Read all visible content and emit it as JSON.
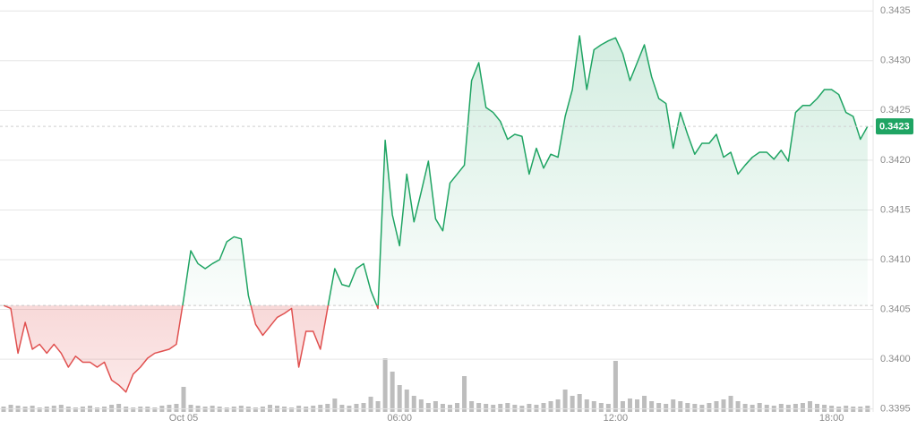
{
  "chart_data": {
    "type": "line",
    "categories": [
      null,
      null,
      null,
      null,
      null,
      null,
      null,
      null,
      null,
      null,
      null,
      null,
      null,
      null,
      null,
      null,
      null,
      null,
      null,
      null,
      null,
      null,
      null,
      null,
      null,
      "Oct 05",
      null,
      null,
      null,
      null,
      null,
      null,
      null,
      null,
      null,
      null,
      null,
      null,
      null,
      null,
      null,
      null,
      null,
      null,
      null,
      null,
      null,
      null,
      null,
      null,
      null,
      null,
      null,
      null,
      null,
      "06:00",
      null,
      null,
      null,
      null,
      null,
      null,
      null,
      null,
      null,
      null,
      null,
      null,
      null,
      null,
      null,
      null,
      null,
      null,
      null,
      null,
      null,
      null,
      null,
      null,
      null,
      null,
      null,
      null,
      null,
      "12:00",
      null,
      null,
      null,
      null,
      null,
      null,
      null,
      null,
      null,
      null,
      null,
      null,
      null,
      null,
      null,
      null,
      null,
      null,
      null,
      null,
      null,
      null,
      null,
      null,
      null,
      null,
      null,
      null,
      null,
      "18:00",
      null,
      null,
      null,
      null,
      null
    ],
    "values": [
      0.34054,
      0.34051,
      0.34006,
      0.34037,
      0.3401,
      0.34015,
      0.34006,
      0.34015,
      0.34006,
      0.33992,
      0.34003,
      0.33997,
      0.33997,
      0.33992,
      0.33997,
      0.33979,
      0.33974,
      0.33967,
      0.33985,
      0.33992,
      0.34001,
      0.34006,
      0.34008,
      0.3401,
      0.34015,
      0.3406,
      0.34109,
      0.34096,
      0.34091,
      0.34096,
      0.341,
      0.34118,
      0.34123,
      0.34121,
      0.34064,
      0.34035,
      0.34024,
      0.34033,
      0.34042,
      0.34046,
      0.34051,
      0.33992,
      0.34028,
      0.34028,
      0.3401,
      0.34051,
      0.34091,
      0.34075,
      0.34073,
      0.34091,
      0.34096,
      0.34069,
      0.34051,
      0.3422,
      0.34145,
      0.34114,
      0.34186,
      0.34138,
      0.34168,
      0.34199,
      0.34141,
      0.34129,
      0.34177,
      0.34186,
      0.34195,
      0.3428,
      0.34298,
      0.34253,
      0.34248,
      0.34239,
      0.34221,
      0.34226,
      0.34224,
      0.34186,
      0.34212,
      0.34192,
      0.34206,
      0.34203,
      0.34244,
      0.34271,
      0.34325,
      0.34271,
      0.34311,
      0.34316,
      0.3432,
      0.34323,
      0.34307,
      0.3428,
      0.34298,
      0.34316,
      0.34284,
      0.34262,
      0.34257,
      0.34212,
      0.34248,
      0.34226,
      0.34206,
      0.34217,
      0.34217,
      0.34226,
      0.34203,
      0.34208,
      0.34186,
      0.34195,
      0.34203,
      0.34208,
      0.34208,
      0.34201,
      0.3421,
      0.34199,
      0.34248,
      0.34255,
      0.34255,
      0.34262,
      0.34271,
      0.34271,
      0.34266,
      0.34248,
      0.34244,
      0.34221,
      0.34234
    ],
    "baseline": 0.34054,
    "up_color": "#1fa463",
    "down_color": "#e0504f",
    "last_value_label": "0.3423",
    "volume": {
      "axis": "y2",
      "color": "#bdbdbd",
      "values": [
        6,
        8,
        7,
        6,
        7,
        5,
        6,
        7,
        8,
        6,
        5,
        6,
        7,
        5,
        6,
        8,
        9,
        6,
        5,
        6,
        6,
        5,
        7,
        8,
        9,
        28,
        8,
        7,
        6,
        7,
        6,
        5,
        6,
        7,
        6,
        5,
        6,
        8,
        7,
        6,
        5,
        7,
        6,
        7,
        8,
        9,
        15,
        8,
        7,
        9,
        10,
        17,
        12,
        60,
        45,
        30,
        25,
        18,
        14,
        10,
        12,
        9,
        8,
        10,
        40,
        12,
        10,
        9,
        8,
        9,
        10,
        8,
        7,
        9,
        8,
        10,
        12,
        14,
        25,
        18,
        20,
        14,
        12,
        10,
        9,
        57,
        12,
        15,
        14,
        18,
        12,
        10,
        9,
        14,
        12,
        10,
        9,
        8,
        10,
        12,
        14,
        18,
        12,
        9,
        8,
        10,
        8,
        7,
        9,
        8,
        9,
        10,
        12,
        9,
        8,
        7,
        6,
        7,
        6,
        6,
        7
      ]
    },
    "ylim": [
      0.33947,
      0.34361
    ],
    "yticks": [
      {
        "value": 0.3395,
        "label": "0.3395"
      },
      {
        "value": 0.34,
        "label": "0.3400"
      },
      {
        "value": 0.3405,
        "label": "0.3405"
      },
      {
        "value": 0.341,
        "label": "0.3410"
      },
      {
        "value": 0.3415,
        "label": "0.3415"
      },
      {
        "value": 0.342,
        "label": "0.3420"
      },
      {
        "value": 0.3425,
        "label": "0.3425"
      },
      {
        "value": 0.343,
        "label": "0.3430"
      },
      {
        "value": 0.3435,
        "label": "0.3435"
      }
    ],
    "y2lim": [
      0,
      460
    ],
    "grid": true
  }
}
